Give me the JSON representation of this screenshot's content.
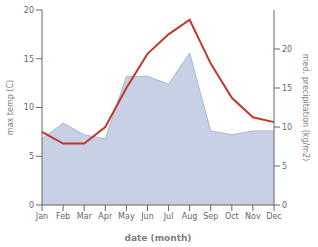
{
  "chart_data": {
    "type": "line",
    "categories": [
      "Jan",
      "Feb",
      "Mar",
      "Apr",
      "May",
      "Jun",
      "Jul",
      "Aug",
      "Sep",
      "Oct",
      "Nov",
      "Dec"
    ],
    "xlabel": "date (month)",
    "ylabel": "max temp (C)",
    "y2label": "med. precipitation (kg/m2)",
    "ylim": [
      0,
      20
    ],
    "yticks": [
      0,
      5,
      10,
      15,
      20
    ],
    "y2lim": [
      0,
      25
    ],
    "y2ticks": [
      0,
      5,
      10,
      15,
      20
    ],
    "grid": false,
    "series": [
      {
        "type": "area",
        "color": "#9aaad0",
        "axis": "y2",
        "values": [
          8.5,
          10.5,
          9.0,
          8.5,
          16.5,
          16.5,
          15.5,
          19.5,
          9.5,
          9.0,
          9.5,
          9.5
        ]
      },
      {
        "type": "line",
        "color": "#c0392b",
        "values": [
          7.5,
          6.3,
          6.3,
          8.0,
          12.0,
          15.5,
          17.5,
          19.0,
          14.5,
          11.0,
          9.0,
          8.5
        ]
      }
    ]
  }
}
